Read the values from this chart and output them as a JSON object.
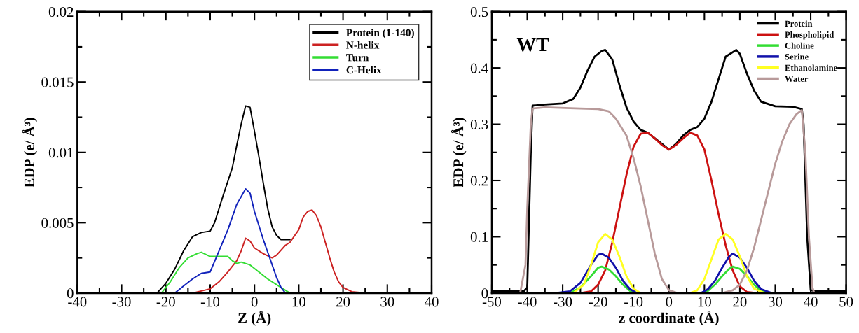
{
  "chart_data": [
    {
      "type": "line",
      "xlabel": "Z (Å)",
      "ylabel": "EDP (e/ Å³)",
      "xlim": [
        -40,
        40
      ],
      "xticks": [
        -40,
        -30,
        -20,
        -10,
        0,
        10,
        20,
        30,
        40
      ],
      "ylim": [
        0,
        0.02
      ],
      "yticks": [
        0,
        0.005,
        0.01,
        0.015,
        0.02
      ],
      "grid": false,
      "legend": "top right",
      "line_style": "solid",
      "marker": "none",
      "series": [
        {
          "name": "Protein (1-140)",
          "color": "#000000",
          "x": [
            -22,
            -20,
            -18,
            -16,
            -14,
            -12,
            -10,
            -9,
            -7,
            -5,
            -4,
            -3,
            -2,
            -1,
            0,
            1,
            2,
            3,
            4,
            5,
            6,
            8
          ],
          "values": [
            0,
            0.0007,
            0.0017,
            0.003,
            0.004,
            0.0043,
            0.0044,
            0.005,
            0.007,
            0.0089,
            0.0105,
            0.012,
            0.0133,
            0.0132,
            0.0115,
            0.0097,
            0.0078,
            0.006,
            0.0047,
            0.0041,
            0.0038,
            0.0038
          ]
        },
        {
          "name": "N-helix",
          "color": "#cc2222",
          "x": [
            -14,
            -10,
            -8,
            -6,
            -4,
            -3,
            -2,
            -1,
            0,
            2,
            4,
            5,
            7,
            8,
            10,
            11,
            12,
            13,
            14,
            15,
            16,
            17,
            18,
            19,
            20,
            22,
            25
          ],
          "values": [
            0,
            0.0003,
            0.0008,
            0.0015,
            0.0023,
            0.003,
            0.0039,
            0.0037,
            0.0032,
            0.0028,
            0.0025,
            0.0027,
            0.0034,
            0.0036,
            0.0045,
            0.0054,
            0.0058,
            0.0059,
            0.0055,
            0.0047,
            0.0036,
            0.0025,
            0.0015,
            0.0008,
            0.0004,
            0.0001,
            0
          ]
        },
        {
          "name": "Turn",
          "color": "#33dd33",
          "x": [
            -21,
            -19,
            -17,
            -15,
            -13,
            -12,
            -10,
            -8,
            -6,
            -5,
            -4,
            -3,
            -1,
            1,
            3,
            5,
            7,
            8
          ],
          "values": [
            0,
            0.0008,
            0.0018,
            0.0025,
            0.0028,
            0.0029,
            0.0026,
            0.0026,
            0.0026,
            0.0023,
            0.0021,
            0.0022,
            0.002,
            0.0015,
            0.001,
            0.0006,
            0.0002,
            0
          ]
        },
        {
          "name": "C-Helix",
          "color": "#1122bb",
          "x": [
            -18,
            -16,
            -14,
            -12,
            -10,
            -8,
            -6,
            -4,
            -2,
            -1,
            0,
            2,
            4,
            5,
            6,
            7
          ],
          "values": [
            0,
            0.0005,
            0.001,
            0.0014,
            0.0015,
            0.003,
            0.0045,
            0.0063,
            0.0074,
            0.0071,
            0.0058,
            0.0038,
            0.002,
            0.0011,
            0.0004,
            0
          ]
        }
      ]
    },
    {
      "type": "line",
      "xlabel": "z coordinate (Å)",
      "ylabel": "EDP (e/ Å³)",
      "annotations": [
        "WT"
      ],
      "xlim": [
        -50,
        50
      ],
      "xticks": [
        -50,
        -40,
        -30,
        -20,
        -10,
        0,
        10,
        20,
        30,
        40,
        50
      ],
      "ylim": [
        0,
        0.5
      ],
      "yticks": [
        0,
        0.1,
        0.2,
        0.3,
        0.4,
        0.5
      ],
      "grid": false,
      "legend": "top right",
      "line_style": "solid",
      "marker": "none",
      "series": [
        {
          "name": "Protein",
          "color": "#000000",
          "x": [
            -50,
            -42,
            -41,
            -40,
            -39,
            -38.5,
            -35,
            -30,
            -27,
            -25,
            -23,
            -21,
            -19,
            -18,
            -16,
            -14,
            -12,
            -10,
            -8,
            -6,
            -4,
            -2,
            0,
            2,
            4,
            6,
            8,
            10,
            12,
            14,
            16,
            18,
            19,
            20,
            22,
            24,
            26,
            30,
            35,
            37.5,
            38,
            39,
            40,
            42,
            50
          ],
          "values": [
            0.003,
            0.003,
            0.003,
            0.01,
            0.25,
            0.333,
            0.335,
            0.337,
            0.345,
            0.365,
            0.395,
            0.42,
            0.43,
            0.432,
            0.415,
            0.37,
            0.33,
            0.305,
            0.29,
            0.285,
            0.275,
            0.265,
            0.255,
            0.265,
            0.28,
            0.29,
            0.295,
            0.31,
            0.34,
            0.38,
            0.42,
            0.428,
            0.432,
            0.425,
            0.39,
            0.36,
            0.34,
            0.332,
            0.331,
            0.327,
            0.3,
            0.1,
            0.005,
            0.003,
            0.003
          ]
        },
        {
          "name": "Phospholipid",
          "color": "#cc1111",
          "x": [
            -25,
            -22,
            -20,
            -18,
            -16,
            -14,
            -12,
            -10,
            -8,
            -6,
            -4,
            -2,
            0,
            2,
            4,
            6,
            8,
            10,
            12,
            14,
            16,
            18,
            20,
            22,
            25
          ],
          "values": [
            0,
            0.003,
            0.015,
            0.04,
            0.09,
            0.15,
            0.21,
            0.26,
            0.283,
            0.285,
            0.275,
            0.263,
            0.255,
            0.263,
            0.275,
            0.285,
            0.28,
            0.255,
            0.2,
            0.14,
            0.085,
            0.04,
            0.012,
            0.002,
            0
          ]
        },
        {
          "name": "Choline",
          "color": "#33dd33",
          "x": [
            -28,
            -25,
            -22,
            -20,
            -19,
            -17,
            -15,
            -13,
            -11,
            -9,
            9,
            11,
            13,
            15,
            17,
            18,
            20,
            22,
            24,
            26,
            28
          ],
          "values": [
            0,
            0.01,
            0.03,
            0.045,
            0.047,
            0.042,
            0.03,
            0.015,
            0.004,
            0,
            0,
            0.004,
            0.015,
            0.03,
            0.043,
            0.047,
            0.043,
            0.03,
            0.015,
            0.004,
            0
          ]
        },
        {
          "name": "Serine",
          "color": "#1111aa",
          "x": [
            -32,
            -28,
            -25,
            -22,
            -20,
            -19,
            -17,
            -15,
            -13,
            -11,
            -9,
            9,
            11,
            13,
            15,
            17,
            18,
            20,
            22,
            24,
            26,
            29
          ],
          "values": [
            0,
            0.003,
            0.018,
            0.05,
            0.068,
            0.07,
            0.063,
            0.045,
            0.022,
            0.007,
            0,
            0,
            0.007,
            0.022,
            0.045,
            0.065,
            0.07,
            0.063,
            0.045,
            0.022,
            0.007,
            0
          ]
        },
        {
          "name": "Ethanolamine",
          "color": "#ffff22",
          "x": [
            -27,
            -24,
            -22,
            -20,
            -18,
            -16,
            -14,
            -12,
            -10,
            -8,
            6,
            8,
            10,
            12,
            14,
            16,
            18,
            20,
            22,
            24,
            27
          ],
          "values": [
            0,
            0.015,
            0.05,
            0.09,
            0.105,
            0.095,
            0.065,
            0.03,
            0.008,
            0,
            0,
            0.005,
            0.025,
            0.06,
            0.095,
            0.105,
            0.095,
            0.065,
            0.03,
            0.008,
            0
          ]
        },
        {
          "name": "Water",
          "color": "#b89a9a",
          "x": [
            -42,
            -40.5,
            -40,
            -39,
            -38.5,
            -35,
            -25,
            -20,
            -17,
            -15,
            -12,
            -10,
            -8,
            -6,
            -4,
            -2,
            0,
            2,
            5,
            15,
            18,
            20,
            22,
            24,
            26,
            28,
            30,
            32,
            34,
            36,
            37.5,
            38.5,
            39.5,
            40.5,
            41
          ],
          "values": [
            0,
            0.05,
            0.15,
            0.3,
            0.328,
            0.33,
            0.328,
            0.327,
            0.323,
            0.31,
            0.28,
            0.24,
            0.19,
            0.13,
            0.07,
            0.025,
            0.005,
            0.001,
            0,
            0,
            0.005,
            0.015,
            0.04,
            0.08,
            0.13,
            0.18,
            0.23,
            0.27,
            0.3,
            0.318,
            0.325,
            0.25,
            0.1,
            0.01,
            0
          ]
        }
      ]
    }
  ]
}
